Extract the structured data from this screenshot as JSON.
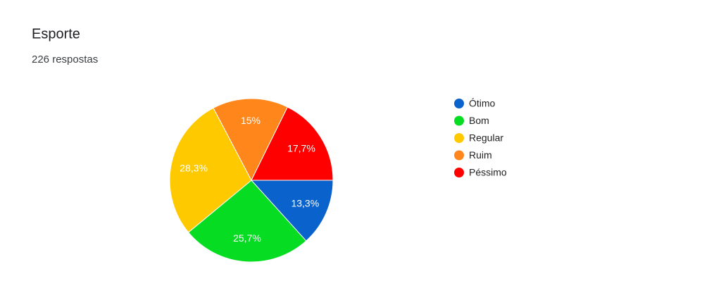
{
  "chart_data": {
    "type": "pie",
    "title": "Esporte",
    "subtitle": "226 respostas",
    "categories": [
      "Ótimo",
      "Bom",
      "Regular",
      "Ruim",
      "Péssimo"
    ],
    "values": [
      13.3,
      25.7,
      28.3,
      15,
      17.7
    ],
    "value_labels": [
      "13,3%",
      "25,7%",
      "28,3%",
      "15%",
      "17,7%"
    ],
    "colors": [
      "#0a62cc",
      "#06dc22",
      "#ffc900",
      "#ff861a",
      "#ff0000"
    ],
    "legend": "right"
  }
}
